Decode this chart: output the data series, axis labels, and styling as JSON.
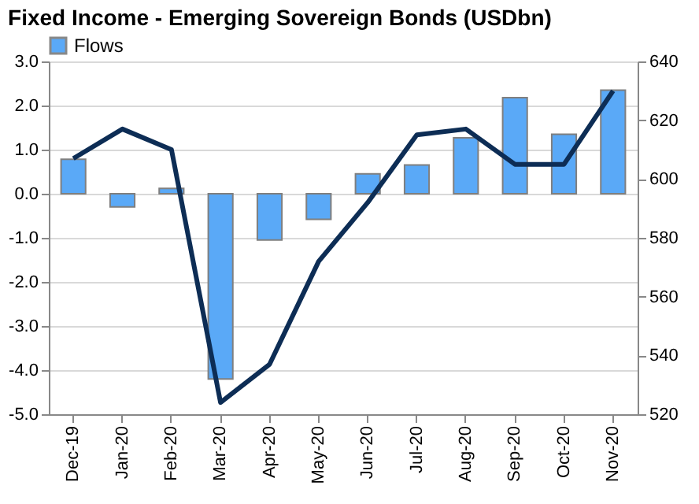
{
  "chart_data": {
    "type": "bar",
    "title": "Fixed Income - Emerging Sovereign Bonds (USDbn)",
    "categories": [
      "Dec-19",
      "Jan-20",
      "Feb-20",
      "Mar-20",
      "Apr-20",
      "May-20",
      "Jun-20",
      "Jul-20",
      "Aug-20",
      "Sep-20",
      "Oct-20",
      "Nov-20"
    ],
    "series": [
      {
        "name": "Flows",
        "color": "#5aa9f7",
        "values": [
          0.78,
          -0.3,
          0.12,
          -4.2,
          -1.05,
          -0.58,
          0.45,
          0.65,
          1.27,
          2.18,
          1.35,
          2.35
        ]
      },
      {
        "type": "line",
        "axis": "y2",
        "color": "#0d2d55",
        "values": [
          607,
          617,
          610,
          524,
          537,
          572,
          592,
          615,
          617,
          605,
          605,
          630
        ]
      }
    ],
    "ylim": [
      -5,
      3
    ],
    "yticks": [
      {
        "value": -5,
        "label": "-5.0"
      },
      {
        "value": -4,
        "label": "-4.0"
      },
      {
        "value": -3,
        "label": "-3.0"
      },
      {
        "value": -2,
        "label": "-2.0"
      },
      {
        "value": -1,
        "label": "-1.0"
      },
      {
        "value": 0,
        "label": "0.0"
      },
      {
        "value": 1,
        "label": "1.0"
      },
      {
        "value": 2,
        "label": "2.0"
      },
      {
        "value": 3,
        "label": "3.0"
      }
    ],
    "y2lim": [
      520,
      640
    ],
    "y2ticks": [
      520,
      540,
      560,
      580,
      600,
      620,
      640
    ],
    "grid": "y",
    "legend": "top",
    "marker": "none",
    "line_style": "solid"
  }
}
